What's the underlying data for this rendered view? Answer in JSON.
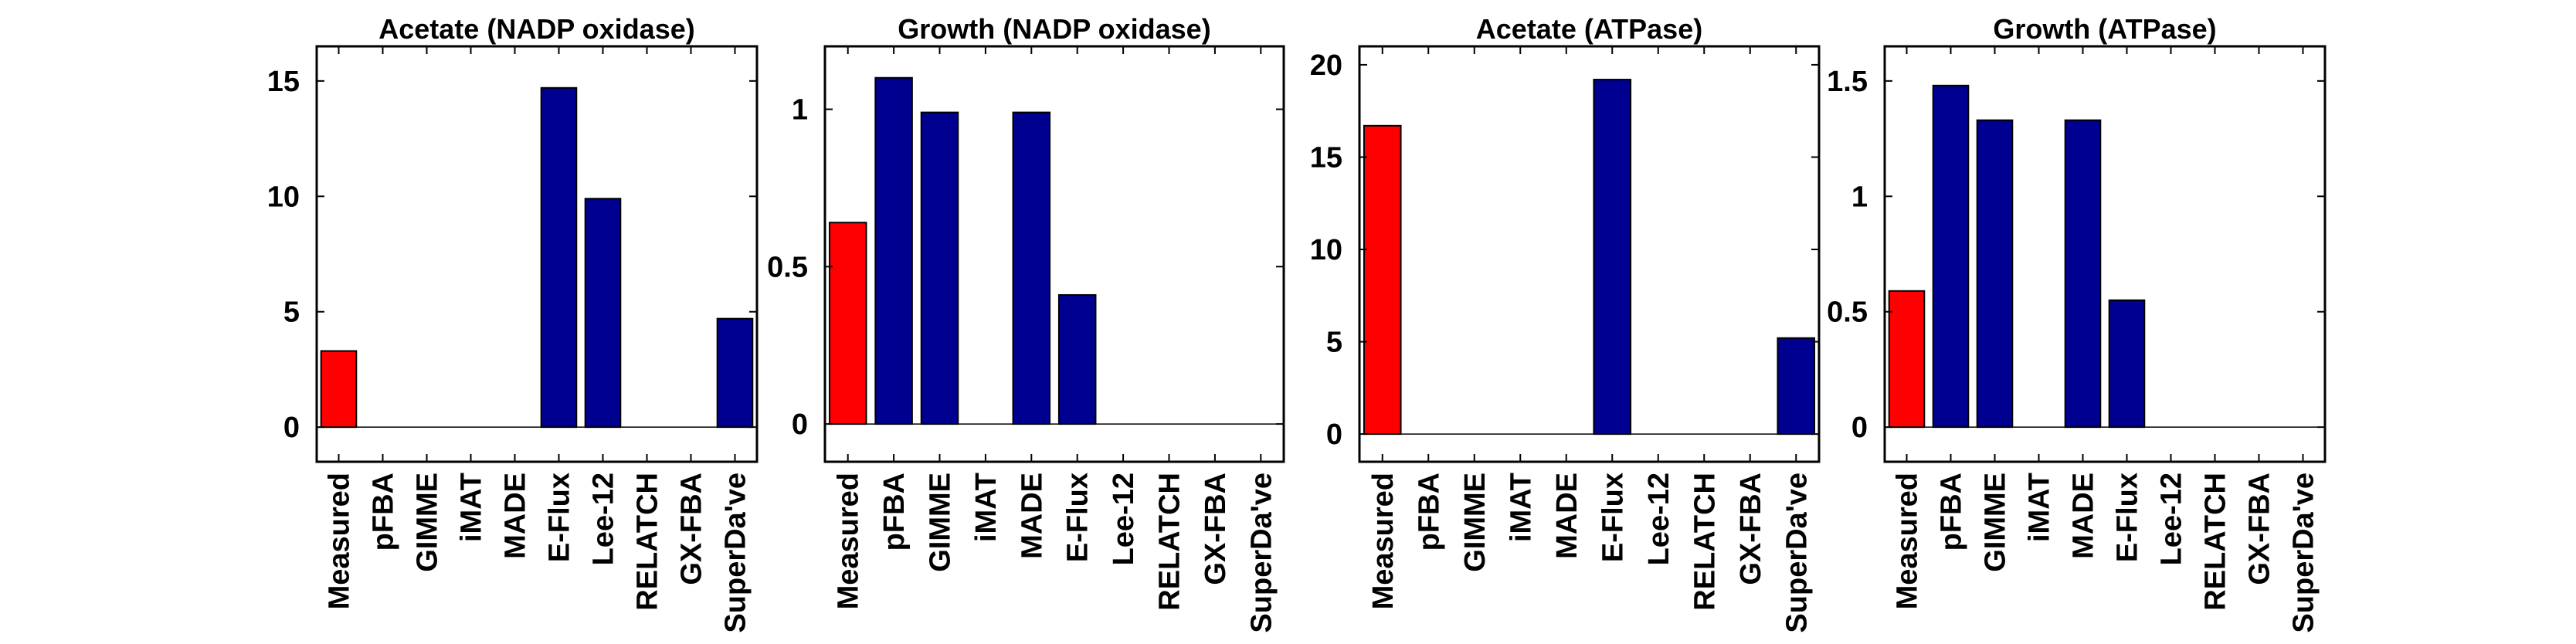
{
  "chart_data": [
    {
      "type": "bar",
      "title": "Acetate (NADP oxidase)",
      "categories": [
        "Measured",
        "pFBA",
        "GIMME",
        "iMAT",
        "MADE",
        "E-Flux",
        "Lee-12",
        "RELATCH",
        "GX-FBA",
        "SuperDa've"
      ],
      "values": [
        3.3,
        0,
        0,
        0,
        0,
        14.7,
        9.9,
        0,
        0,
        4.7
      ],
      "ylim": [
        -1.5,
        16.5
      ],
      "yticks": [
        0,
        5,
        10,
        15
      ],
      "ytick_labels": [
        "0",
        "5",
        "10",
        "15"
      ],
      "xlabel": "",
      "ylabel": "",
      "grid": false
    },
    {
      "type": "bar",
      "title": "Growth (NADP oxidase)",
      "categories": [
        "Measured",
        "pFBA",
        "GIMME",
        "iMAT",
        "MADE",
        "E-Flux",
        "Lee-12",
        "RELATCH",
        "GX-FBA",
        "SuperDa've"
      ],
      "values": [
        0.64,
        1.1,
        0.99,
        0,
        0.99,
        0.41,
        0,
        0,
        0,
        0
      ],
      "ylim": [
        -0.12,
        1.2
      ],
      "yticks": [
        0,
        0.5,
        1
      ],
      "ytick_labels": [
        "0",
        "0.5",
        "1"
      ],
      "xlabel": "",
      "ylabel": "",
      "grid": false
    },
    {
      "type": "bar",
      "title": "Acetate (ATPase)",
      "categories": [
        "Measured",
        "pFBA",
        "GIMME",
        "iMAT",
        "MADE",
        "E-Flux",
        "Lee-12",
        "RELATCH",
        "GX-FBA",
        "SuperDa've"
      ],
      "values": [
        16.7,
        0,
        0,
        0,
        0,
        19.2,
        0,
        0,
        0,
        5.2
      ],
      "ylim": [
        -1.5,
        21
      ],
      "yticks": [
        0,
        5,
        10,
        15,
        20
      ],
      "ytick_labels": [
        "0",
        "5",
        "10",
        "15",
        "20"
      ],
      "xlabel": "",
      "ylabel": "",
      "grid": false
    },
    {
      "type": "bar",
      "title": "Growth (ATPase)",
      "categories": [
        "Measured",
        "pFBA",
        "GIMME",
        "iMAT",
        "MADE",
        "E-Flux",
        "Lee-12",
        "RELATCH",
        "GX-FBA",
        "SuperDa've"
      ],
      "values": [
        0.59,
        1.48,
        1.33,
        0,
        1.33,
        0.55,
        0,
        0,
        0,
        0
      ],
      "ylim": [
        -0.15,
        1.65
      ],
      "yticks": [
        0,
        0.5,
        1,
        1.5
      ],
      "ytick_labels": [
        "0",
        "0.5",
        "1",
        "1.5"
      ],
      "xlabel": "",
      "ylabel": "",
      "grid": false
    }
  ],
  "colors": {
    "measured": "#ff0000",
    "predicted": "#000090",
    "axis": "#000000",
    "background": "#ffffff"
  }
}
